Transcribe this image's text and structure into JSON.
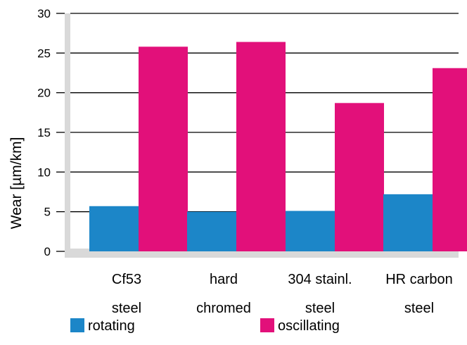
{
  "chart_data": {
    "type": "bar",
    "ylabel": "Wear [µm/km]",
    "ylim": [
      0,
      30
    ],
    "yticks": [
      0,
      5,
      10,
      15,
      20,
      25,
      30
    ],
    "grid": true,
    "categories": [
      [
        "Cf53",
        "steel"
      ],
      [
        "hard",
        "chromed"
      ],
      [
        "304 stainl.",
        "steel"
      ],
      [
        "HR carbon",
        "steel"
      ]
    ],
    "series": [
      {
        "name": "rotating",
        "color": "#1c86c8",
        "values": [
          5.7,
          5.0,
          5.1,
          7.2
        ]
      },
      {
        "name": "oscillating",
        "color": "#e2107a",
        "values": [
          25.8,
          26.4,
          18.7,
          23.1
        ]
      }
    ],
    "legend_position": "bottom"
  }
}
